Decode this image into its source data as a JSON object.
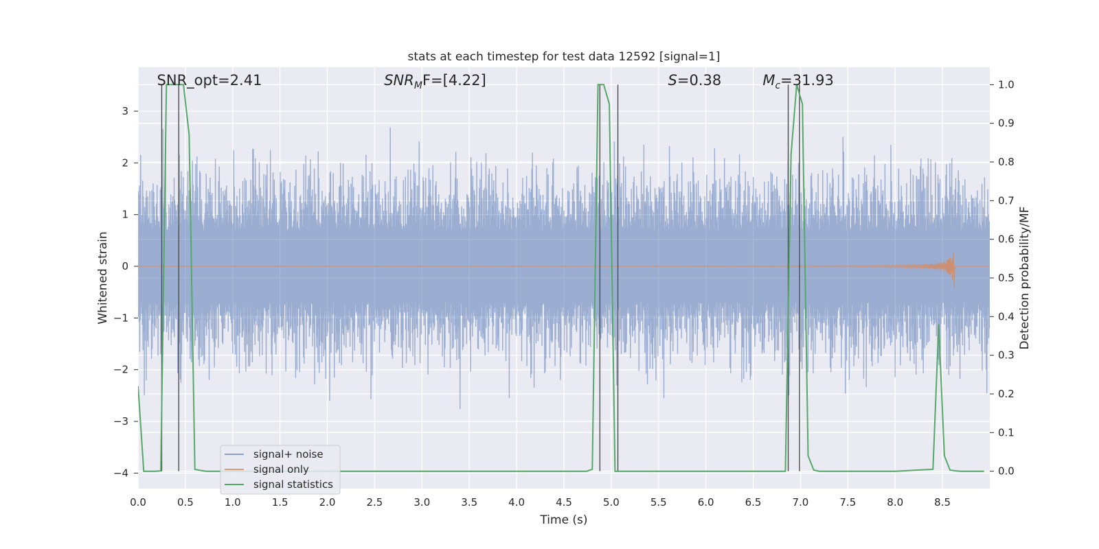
{
  "chart_data": {
    "type": "line",
    "title": "stats at each timestep for test data 12592 [signal=1]",
    "xlabel": "Time (s)",
    "ylabel": "Whitened strain",
    "y2label": "Detection probability/MF",
    "xlim": [
      0.0,
      9.0
    ],
    "ylim": [
      -4.3,
      3.85
    ],
    "y2lim": [
      -0.045,
      1.045
    ],
    "xticks": [
      0.0,
      0.5,
      1.0,
      1.5,
      2.0,
      2.5,
      3.0,
      3.5,
      4.0,
      4.5,
      5.0,
      5.5,
      6.0,
      6.5,
      7.0,
      7.5,
      8.0,
      8.5
    ],
    "xtick_labels": [
      "0.0",
      "0.5",
      "1.0",
      "1.5",
      "2.0",
      "2.5",
      "3.0",
      "3.5",
      "4.0",
      "4.5",
      "5.0",
      "5.5",
      "6.0",
      "6.5",
      "7.0",
      "7.5",
      "8.0",
      "8.5"
    ],
    "yticks": [
      -4,
      -3,
      -2,
      -1,
      0,
      1,
      2,
      3
    ],
    "ytick_labels": [
      "−4",
      "−3",
      "−2",
      "−1",
      "0",
      "1",
      "2",
      "3"
    ],
    "y2ticks": [
      0.0,
      0.1,
      0.2,
      0.3,
      0.4,
      0.5,
      0.6,
      0.7,
      0.8,
      0.9,
      1.0
    ],
    "y2tick_labels": [
      "0.0",
      "0.1",
      "0.2",
      "0.3",
      "0.4",
      "0.5",
      "0.6",
      "0.7",
      "0.8",
      "0.9",
      "1.0"
    ],
    "grid": true,
    "legend_position": "lower-left",
    "annotations": [
      {
        "text": "SNR_opt=2.41",
        "x": 0.2
      },
      {
        "base": "SNR",
        "sub": "M",
        "tail": "F=[4.22]",
        "x": 2.6
      },
      {
        "base": "S",
        "tail": "=0.38",
        "x": 5.6
      },
      {
        "base": "M",
        "sub": "c",
        "tail": "=31.93",
        "x": 6.6
      }
    ],
    "series": [
      {
        "name": "signal+ noise",
        "color": "#4c72b0",
        "kind": "noise",
        "amplitude_range": [
          -4.0,
          3.4
        ]
      },
      {
        "name": "signal only",
        "color": "#dd8452",
        "kind": "chirp",
        "end_time": 8.63,
        "peak_amplitude": 0.55
      },
      {
        "name": "signal statistics",
        "color": "#55a868",
        "axis": "right",
        "x": [
          0.0,
          0.06,
          0.12,
          0.18,
          0.24,
          0.3,
          0.36,
          0.42,
          0.48,
          0.54,
          0.6,
          0.66,
          0.72,
          0.78,
          0.84,
          0.9,
          0.96,
          1.02,
          1.08,
          1.14,
          1.2,
          1.5,
          2.0,
          2.5,
          3.0,
          3.5,
          4.0,
          4.5,
          4.74,
          4.8,
          4.86,
          4.92,
          4.98,
          5.04,
          5.1,
          5.16,
          5.5,
          6.0,
          6.5,
          6.84,
          6.9,
          6.96,
          7.02,
          7.08,
          7.14,
          7.2,
          7.5,
          8.0,
          8.4,
          8.46,
          8.52,
          8.58,
          8.64,
          8.7,
          8.76,
          8.82,
          8.88,
          8.94
        ],
        "y": [
          0.22,
          0.0,
          0.0,
          0.0,
          0.001,
          1.0,
          1.0,
          1.0,
          1.0,
          0.87,
          0.005,
          0.002,
          0.0,
          0.0,
          0.0,
          0.0,
          0.0,
          0.0,
          0.0,
          0.0,
          0.0,
          0.0,
          0.0,
          0.0,
          0.0,
          0.0,
          0.0,
          0.0,
          0.0,
          0.005,
          1.0,
          1.0,
          0.95,
          0.0,
          0.0,
          0.0,
          0.0,
          0.0,
          0.0,
          0.0,
          0.82,
          1.0,
          0.95,
          0.04,
          0.003,
          0.0,
          0.0,
          0.0,
          0.005,
          0.38,
          0.04,
          0.003,
          0.001,
          0.0,
          0.0,
          0.0,
          0.0,
          0.0
        ]
      },
      {
        "name": "",
        "color": "#4c4c4c",
        "kind": "markers",
        "axis": "right",
        "x": [
          0.25,
          0.43,
          4.88,
          5.07,
          6.87,
          6.99
        ]
      }
    ]
  }
}
